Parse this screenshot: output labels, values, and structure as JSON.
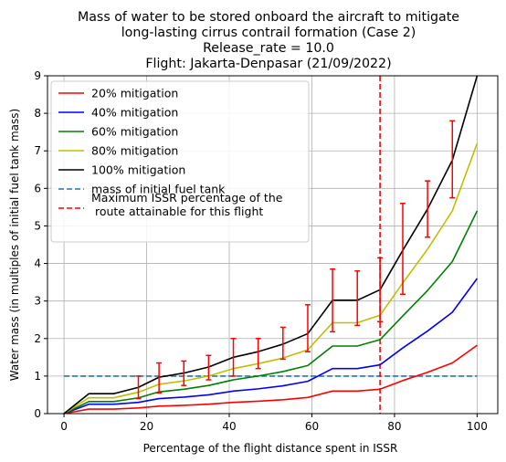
{
  "chart_data": {
    "type": "line",
    "title_lines": [
      "Mass of water to be stored onboard the aircraft to mitigate",
      "long-lasting cirrus contrail formation (Case 2)",
      "Release_rate = 10.0",
      "Flight: Jakarta-Denpasar (21/09/2022)"
    ],
    "xlabel": "Percentage of the flight distance spent in ISSR",
    "ylabel": "Water mass (in multiples of initial fuel tank mass)",
    "xlim": [
      -4,
      105
    ],
    "ylim": [
      0,
      9
    ],
    "xticks": [
      0,
      20,
      40,
      60,
      80,
      100
    ],
    "yticks": [
      0,
      1,
      2,
      3,
      4,
      5,
      6,
      7,
      8,
      9
    ],
    "grid": true,
    "legend_position": "upper-left",
    "x": [
      0,
      6,
      12,
      18,
      23,
      29,
      35,
      41,
      47,
      53,
      59,
      65,
      71,
      76.5,
      82,
      88,
      94,
      100
    ],
    "series": [
      {
        "name": "20% mitigation",
        "color": "#ff0000",
        "values": [
          0,
          0.12,
          0.12,
          0.15,
          0.2,
          0.22,
          0.25,
          0.3,
          0.33,
          0.37,
          0.43,
          0.6,
          0.6,
          0.65,
          0.88,
          1.1,
          1.35,
          1.82
        ]
      },
      {
        "name": "40% mitigation",
        "color": "#0000ff",
        "values": [
          0,
          0.25,
          0.25,
          0.3,
          0.4,
          0.44,
          0.5,
          0.6,
          0.66,
          0.74,
          0.86,
          1.2,
          1.2,
          1.3,
          1.75,
          2.2,
          2.7,
          3.6
        ]
      },
      {
        "name": "60% mitigation",
        "color": "#008000",
        "values": [
          0,
          0.32,
          0.32,
          0.42,
          0.58,
          0.65,
          0.75,
          0.9,
          1.0,
          1.12,
          1.28,
          1.8,
          1.8,
          1.97,
          2.6,
          3.28,
          4.05,
          5.4
        ]
      },
      {
        "name": "80% mitigation",
        "color": "#bfbf00",
        "values": [
          0,
          0.42,
          0.42,
          0.57,
          0.78,
          0.87,
          1.0,
          1.2,
          1.33,
          1.48,
          1.7,
          2.42,
          2.42,
          2.62,
          3.48,
          4.38,
          5.4,
          7.2
        ]
      },
      {
        "name": "100% mitigation",
        "color": "#000000",
        "values": [
          0,
          0.53,
          0.53,
          0.7,
          0.97,
          1.08,
          1.24,
          1.5,
          1.65,
          1.85,
          2.13,
          3.02,
          3.02,
          3.3,
          4.35,
          5.45,
          6.75,
          9.0
        ]
      }
    ],
    "reference_line": {
      "name": "mass of initial fuel tank",
      "color": "#1f77b4",
      "y": 1,
      "x_range": [
        0,
        100
      ]
    },
    "vertical_line": {
      "name": "Maximum ISSR percentage of the\n route attainable for this flight",
      "color": "#ff0000",
      "x": 76.5
    },
    "error_bars": {
      "color": "#ff0000",
      "x": [
        18,
        23,
        29,
        35,
        41,
        47,
        53,
        59,
        65,
        71,
        76.5,
        82,
        88,
        94
      ],
      "low": [
        0.4,
        0.55,
        0.75,
        0.9,
        1.0,
        1.2,
        1.45,
        1.65,
        2.18,
        2.35,
        2.45,
        3.18,
        4.7,
        5.75
      ],
      "high": [
        1.0,
        1.35,
        1.4,
        1.55,
        2.0,
        2.0,
        2.3,
        2.9,
        3.85,
        3.8,
        4.15,
        5.6,
        6.2,
        7.8
      ]
    }
  }
}
